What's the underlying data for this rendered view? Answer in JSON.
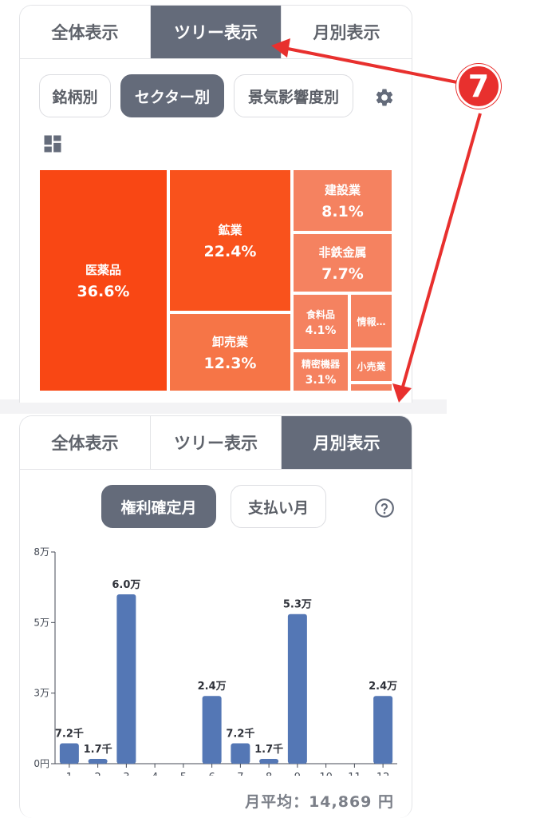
{
  "top": {
    "tabs": [
      "全体表示",
      "ツリー表示",
      "月別表示"
    ],
    "active_tab": 1,
    "chips": [
      "銘柄別",
      "セクター別",
      "景気影響度別"
    ],
    "active_chip": 1,
    "settings_icon": "gear-icon",
    "layout_icon": "dashboard-icon",
    "treemap": [
      {
        "name": "医薬品",
        "pct": "36.6%",
        "color": "#f94714"
      },
      {
        "name": "鉱業",
        "pct": "22.4%",
        "color": "#f9521c"
      },
      {
        "name": "卸売業",
        "pct": "12.3%",
        "color": "#f67547"
      },
      {
        "name": "建設業",
        "pct": "8.1%",
        "color": "#f58260"
      },
      {
        "name": "非鉄金属",
        "pct": "7.7%",
        "color": "#f58260"
      },
      {
        "name": "食料品",
        "pct": "4.1%",
        "color": "#f58260"
      },
      {
        "name": "情報…",
        "pct": "",
        "color": "#f58260"
      },
      {
        "name": "精密機器",
        "pct": "3.1%",
        "color": "#f58260"
      },
      {
        "name": "小売業",
        "pct": "",
        "color": "#f58260"
      }
    ]
  },
  "bottom": {
    "tabs": [
      "全体表示",
      "ツリー表示",
      "月別表示"
    ],
    "active_tab": 2,
    "chips": [
      "権利確定月",
      "支払い月"
    ],
    "active_chip": 0,
    "help_icon": "help-circle-icon",
    "average_label": "月平均：14,869 円"
  },
  "chart_data": {
    "type": "bar",
    "categories": [
      "1",
      "2",
      "3",
      "4",
      "5",
      "6",
      "7",
      "8",
      "9",
      "10",
      "11",
      "12"
    ],
    "values": [
      7200,
      1700,
      60000,
      0,
      0,
      24000,
      7200,
      1700,
      53000,
      0,
      0,
      24000
    ],
    "data_labels": [
      "7.2千",
      "1.7千",
      "6.0万",
      "",
      "",
      "2.4万",
      "7.2千",
      "1.7千",
      "5.3万",
      "",
      "",
      "2.4万"
    ],
    "yticks": [
      0,
      25000,
      50000,
      75000
    ],
    "ytick_labels": [
      "0円",
      "3万",
      "5万",
      "8万"
    ],
    "ylim": [
      0,
      75000
    ],
    "grid": false,
    "bar_color": "#5477b5"
  },
  "annotation": {
    "badge": "7",
    "color": "#e8302e"
  }
}
